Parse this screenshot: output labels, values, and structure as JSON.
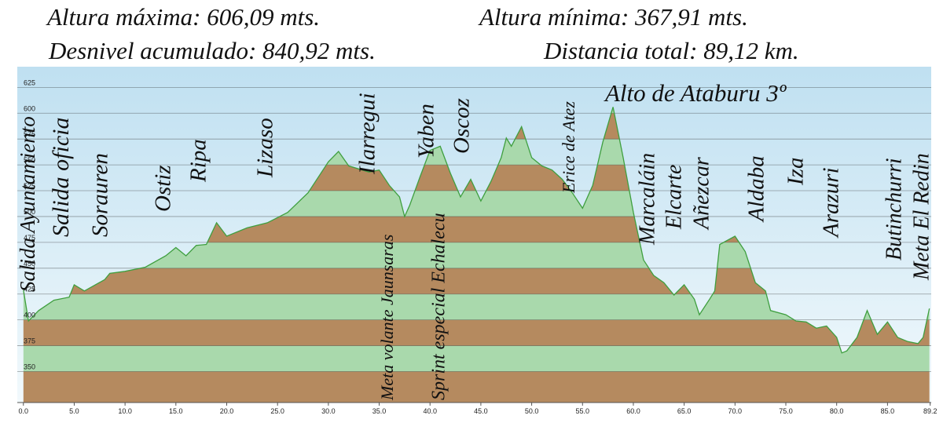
{
  "header": {
    "lines": [
      [
        "Altura máxima: 606,09 mts.",
        "Altura mínima: 367,91 mts."
      ],
      [
        "Desnivel acumulado: 840,92 mts.",
        "Distancia total: 89,12 km."
      ]
    ]
  },
  "chart_data": {
    "type": "area",
    "x": [
      0,
      0.5,
      1.5,
      3,
      4.5,
      5,
      6,
      8,
      8.5,
      10,
      12,
      14,
      15,
      16,
      17,
      18,
      19,
      20,
      22,
      24,
      26,
      28,
      30,
      31,
      32,
      34,
      35,
      36,
      37,
      37.5,
      38,
      39,
      40,
      41,
      42,
      43,
      44,
      45,
      46,
      47,
      47.5,
      48,
      49,
      50,
      51,
      52,
      53,
      54,
      55,
      56,
      57,
      58,
      59,
      60,
      61,
      62,
      63,
      64,
      65,
      66,
      66.5,
      67.5,
      68,
      68.5,
      70,
      71,
      72,
      73,
      73.5,
      75,
      76,
      77,
      78,
      79,
      80,
      80.5,
      81,
      82,
      83,
      84,
      85,
      86,
      87,
      88,
      88.5,
      89.12
    ],
    "values": [
      429,
      399,
      409,
      419,
      422,
      434,
      428,
      439,
      445,
      447,
      451,
      462,
      470,
      462,
      472,
      473,
      494,
      481,
      489,
      494,
      504,
      523,
      553,
      563,
      549,
      543,
      545,
      530,
      519,
      500,
      511,
      538,
      564,
      568,
      542,
      519,
      536,
      515,
      534,
      557,
      576,
      568,
      587,
      557,
      549,
      545,
      536,
      523,
      508,
      530,
      572,
      606,
      557,
      504,
      458,
      443,
      436,
      424,
      434,
      420,
      405,
      420,
      428,
      473,
      481,
      466,
      436,
      428,
      409,
      405,
      399,
      398,
      392,
      394,
      383,
      368,
      370,
      383,
      409,
      386,
      398,
      383,
      379,
      377,
      383,
      411
    ],
    "line_color": "#3f9f3f",
    "band_colors": [
      "#b58a5f",
      "#a9d9ac"
    ],
    "xlim": [
      -0.6,
      89.3
    ],
    "ylim": [
      320,
      645
    ],
    "xticks": [
      {
        "value": 0,
        "label": "0.0"
      },
      {
        "value": 5,
        "label": "5.0"
      },
      {
        "value": 10,
        "label": "10.0"
      },
      {
        "value": 15,
        "label": "15.0"
      },
      {
        "value": 20,
        "label": "20.0"
      },
      {
        "value": 25,
        "label": "25.0"
      },
      {
        "value": 30,
        "label": "30.0"
      },
      {
        "value": 35,
        "label": "35.0"
      },
      {
        "value": 40,
        "label": "40.0"
      },
      {
        "value": 45,
        "label": "45.0"
      },
      {
        "value": 50,
        "label": "50.0"
      },
      {
        "value": 55,
        "label": "55.0"
      },
      {
        "value": 60,
        "label": "60.0"
      },
      {
        "value": 65,
        "label": "65.0"
      },
      {
        "value": 70,
        "label": "70.0"
      },
      {
        "value": 75,
        "label": "75.0"
      },
      {
        "value": 80,
        "label": "80.0"
      },
      {
        "value": 85,
        "label": "85.0"
      },
      89.2
    ],
    "yticks": [
      350,
      375,
      400,
      425,
      450,
      475,
      500,
      525,
      550,
      575,
      600,
      625
    ],
    "grid": true,
    "annotations": [
      "Salida Ayuntamiento",
      "Salida oficia",
      "Sorauren",
      "Ostiz",
      "Ripa",
      "Lizaso",
      "Ilarregui",
      "Meta volante Jaunsaras",
      "Yaben",
      "Sprint especial Echalecu",
      "Oscoz",
      "Erice de Atez",
      "Alto de Ataburu 3º",
      "Marcaláin",
      "Elcarte",
      "Añezcar",
      "Aldaba",
      "Iza",
      "Arazuri",
      "Butinchurri",
      "Meta El Redin"
    ]
  }
}
